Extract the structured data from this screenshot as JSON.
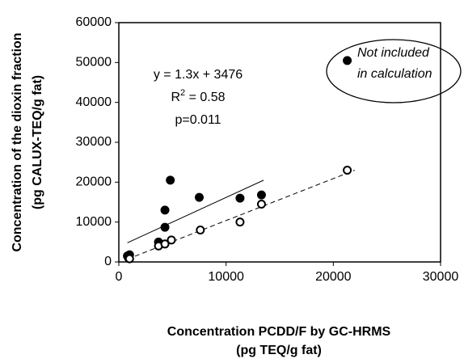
{
  "chart_data": {
    "type": "scatter",
    "x_label": [
      "Concentration PCDD/F by GC-HRMS",
      "(pg TEQ/g fat)"
    ],
    "y_label": [
      "Concentration of the dioxin fraction",
      "(pg CALUX-TEQ/g fat)"
    ],
    "xlim": [
      0,
      30000
    ],
    "ylim": [
      0,
      60000
    ],
    "xticks": [
      0,
      10000,
      20000,
      30000
    ],
    "yticks": [
      0,
      10000,
      20000,
      30000,
      40000,
      50000,
      60000
    ],
    "series": [
      {
        "marker": "filled",
        "color": "#000000",
        "x": [
          800,
          900,
          1000,
          3700,
          4300,
          4300,
          4800,
          7500,
          11300,
          13300,
          21300
        ],
        "values": [
          1500,
          1000,
          1800,
          5000,
          8700,
          13000,
          20500,
          16200,
          16000,
          16800,
          50500
        ]
      },
      {
        "marker": "open",
        "color": "#000000",
        "x": [
          1000,
          3700,
          4300,
          4900,
          7600,
          11300,
          13300,
          21300
        ],
        "values": [
          800,
          4000,
          4500,
          5500,
          8000,
          10000,
          14500,
          23000
        ]
      }
    ],
    "lines": [
      {
        "style": "solid",
        "color": "#000000",
        "x": [
          800,
          13500
        ],
        "values": [
          4800,
          20500
        ]
      },
      {
        "style": "dashed",
        "color": "#000000",
        "x": [
          800,
          22000
        ],
        "values": [
          700,
          23000
        ]
      }
    ],
    "equation": {
      "line1": "y = 1.3x + 3476",
      "r_base": "R",
      "r_sup": "2",
      "r_rest": " = 0.58",
      "line3": "p=0.011"
    },
    "note": [
      "Not included",
      "in calculation"
    ]
  }
}
